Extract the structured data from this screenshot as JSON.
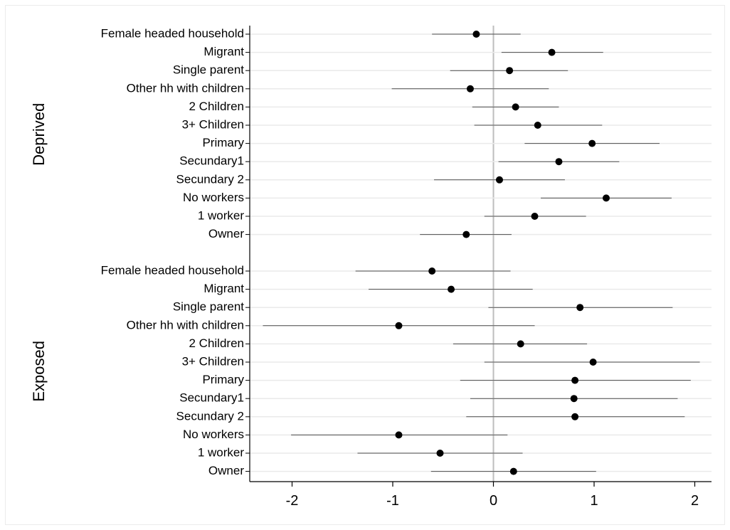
{
  "chart_data": {
    "type": "scatter",
    "subtype": "coefficient-plot",
    "x_ticks": [
      -2,
      -1,
      0,
      1,
      2
    ],
    "xlim": [
      -2.3,
      2.15
    ],
    "reference_line": 0,
    "grid": "horizontal",
    "groups": [
      {
        "name": "Deprived",
        "items": [
          {
            "label": "Female headed household",
            "estimate": -0.17,
            "ci": [
              -0.61,
              0.27
            ]
          },
          {
            "label": "Migrant",
            "estimate": 0.58,
            "ci": [
              0.08,
              1.09
            ]
          },
          {
            "label": "Single parent",
            "estimate": 0.16,
            "ci": [
              -0.43,
              0.74
            ]
          },
          {
            "label": "Other hh with children",
            "estimate": -0.23,
            "ci": [
              -1.01,
              0.55
            ]
          },
          {
            "label": "2 Children",
            "estimate": 0.22,
            "ci": [
              -0.21,
              0.65
            ]
          },
          {
            "label": "3+ Children",
            "estimate": 0.44,
            "ci": [
              -0.19,
              1.08
            ]
          },
          {
            "label": "Primary",
            "estimate": 0.98,
            "ci": [
              0.31,
              1.65
            ]
          },
          {
            "label": "Secundary1",
            "estimate": 0.65,
            "ci": [
              0.05,
              1.25
            ]
          },
          {
            "label": "Secundary 2",
            "estimate": 0.06,
            "ci": [
              -0.59,
              0.71
            ]
          },
          {
            "label": "No workers",
            "estimate": 1.12,
            "ci": [
              0.47,
              1.77
            ]
          },
          {
            "label": "1 worker",
            "estimate": 0.41,
            "ci": [
              -0.09,
              0.92
            ]
          },
          {
            "label": "Owner",
            "estimate": -0.27,
            "ci": [
              -0.73,
              0.18
            ]
          }
        ]
      },
      {
        "name": "Exposed",
        "items": [
          {
            "label": "Female headed household",
            "estimate": -0.61,
            "ci": [
              -1.37,
              0.17
            ]
          },
          {
            "label": "Migrant",
            "estimate": -0.42,
            "ci": [
              -1.24,
              0.39
            ]
          },
          {
            "label": "Single parent",
            "estimate": 0.86,
            "ci": [
              -0.05,
              1.78
            ]
          },
          {
            "label": "Other hh with children",
            "estimate": -0.94,
            "ci": [
              -2.29,
              0.41
            ]
          },
          {
            "label": "2 Children",
            "estimate": 0.27,
            "ci": [
              -0.4,
              0.93
            ]
          },
          {
            "label": "3+ Children",
            "estimate": 0.99,
            "ci": [
              -0.09,
              2.05
            ]
          },
          {
            "label": "Primary",
            "estimate": 0.81,
            "ci": [
              -0.33,
              1.96
            ]
          },
          {
            "label": "Secundary1",
            "estimate": 0.8,
            "ci": [
              -0.23,
              1.83
            ]
          },
          {
            "label": "Secundary 2",
            "estimate": 0.81,
            "ci": [
              -0.27,
              1.9
            ]
          },
          {
            "label": "No workers",
            "estimate": -0.94,
            "ci": [
              -2.01,
              0.14
            ]
          },
          {
            "label": "1 worker",
            "estimate": -0.53,
            "ci": [
              -1.35,
              0.29
            ]
          },
          {
            "label": "Owner",
            "estimate": 0.2,
            "ci": [
              -0.62,
              1.02
            ]
          }
        ]
      }
    ],
    "colors": {
      "point": "#000000",
      "ci_line": "#4d4d4d",
      "grid": "#eaeaea",
      "reference": "#bdbdbd",
      "axis": "#000000"
    }
  }
}
